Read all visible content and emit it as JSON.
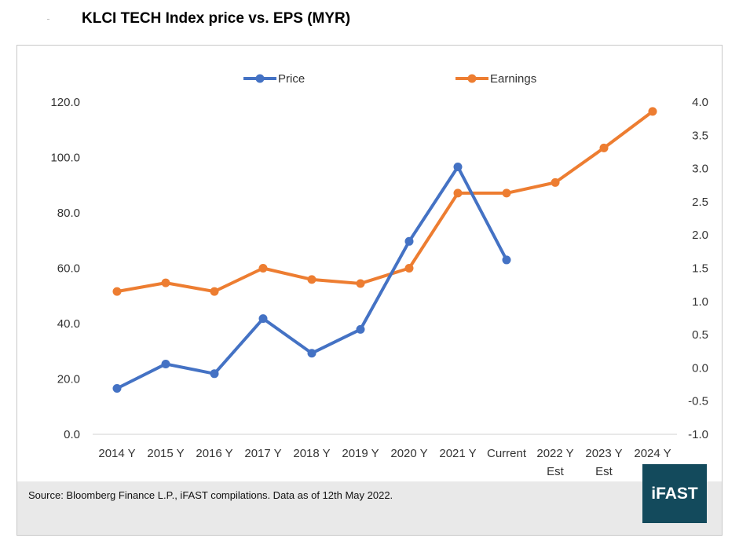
{
  "title": "KLCI TECH Index price vs. EPS (MYR)",
  "source": "Source: Bloomberg Finance L.P., iFAST compilations. Data as of 12th May 2022.",
  "logo_text": "iFAST",
  "colors": {
    "price": "#4472c4",
    "earnings": "#ed7d31",
    "logo_bg": "#134a5c",
    "source_bg": "#e9e9e9"
  },
  "chart_data": {
    "type": "line",
    "title": "KLCI TECH Index price vs. EPS (MYR)",
    "categories": [
      [
        "2014 Y"
      ],
      [
        "2015 Y"
      ],
      [
        "2016 Y"
      ],
      [
        "2017 Y"
      ],
      [
        "2018 Y"
      ],
      [
        "2019 Y"
      ],
      [
        "2020 Y"
      ],
      [
        "2021 Y"
      ],
      [
        "Current"
      ],
      [
        "2022 Y",
        "Est"
      ],
      [
        "2023 Y",
        "Est"
      ],
      [
        "2024 Y"
      ]
    ],
    "y_left": {
      "min": 0,
      "max": 120,
      "step": 20,
      "ticks": [
        "0.0",
        "20.0",
        "40.0",
        "60.0",
        "80.0",
        "100.0",
        "120.0"
      ]
    },
    "y_right": {
      "min": -1.0,
      "max": 4.0,
      "step": 0.5,
      "ticks": [
        "-1.0",
        "-0.5",
        "0.0",
        "0.5",
        "1.0",
        "1.5",
        "2.0",
        "2.5",
        "3.0",
        "3.5",
        "4.0"
      ]
    },
    "legend_position": "top",
    "series": [
      {
        "name": "Price",
        "axis": "left",
        "values": [
          16.6,
          25.4,
          21.9,
          41.8,
          29.3,
          37.9,
          69.7,
          96.6,
          63.0,
          null,
          null,
          null
        ]
      },
      {
        "name": "Earnings",
        "axis": "right",
        "values": [
          1.15,
          1.28,
          1.15,
          1.5,
          1.33,
          1.27,
          1.5,
          2.63,
          2.63,
          2.79,
          3.31,
          3.86
        ]
      }
    ]
  }
}
